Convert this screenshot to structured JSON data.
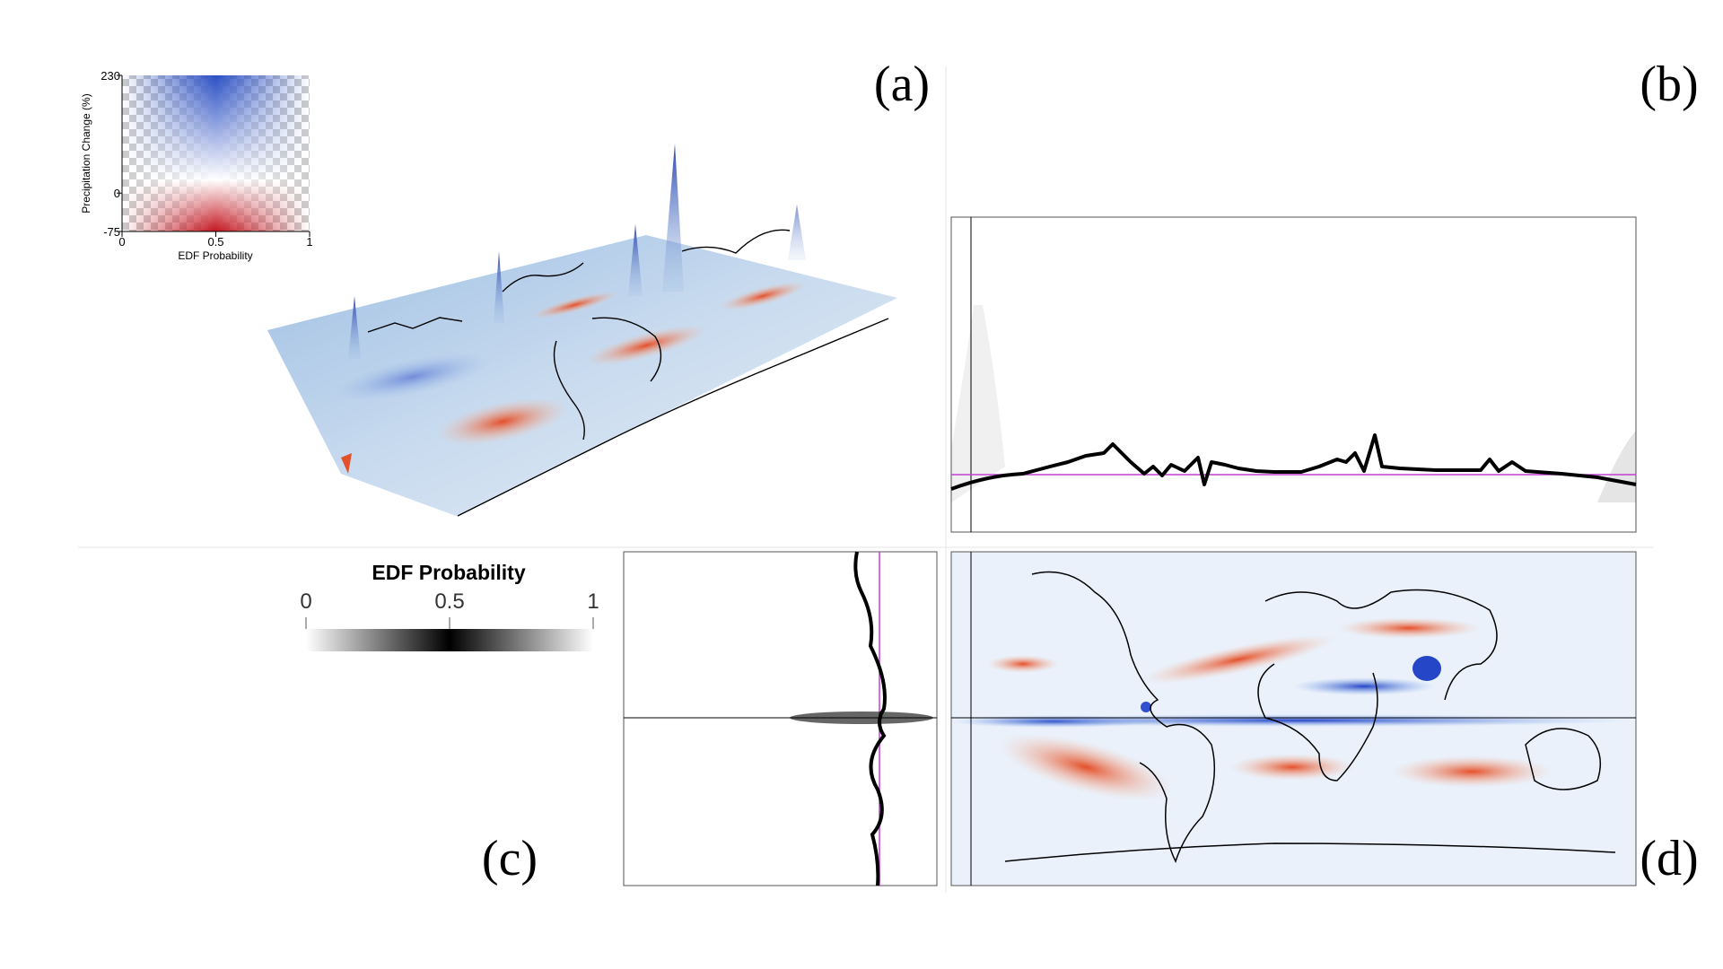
{
  "panels": [
    "(a)",
    "(b)",
    "(c)",
    "(d)"
  ],
  "inset": {
    "xlabel": "EDF Probability",
    "ylabel": "Precipitation Change (%)",
    "xlim": [
      0,
      1
    ],
    "ylim": [
      -75,
      230
    ],
    "xticks": [
      0,
      0.5,
      1
    ],
    "yticks": [
      230,
      0,
      -75
    ]
  },
  "colorbar": {
    "title": "EDF Probability",
    "lim": [
      0,
      1
    ],
    "ticks": [
      0,
      0.5,
      1
    ]
  }
}
